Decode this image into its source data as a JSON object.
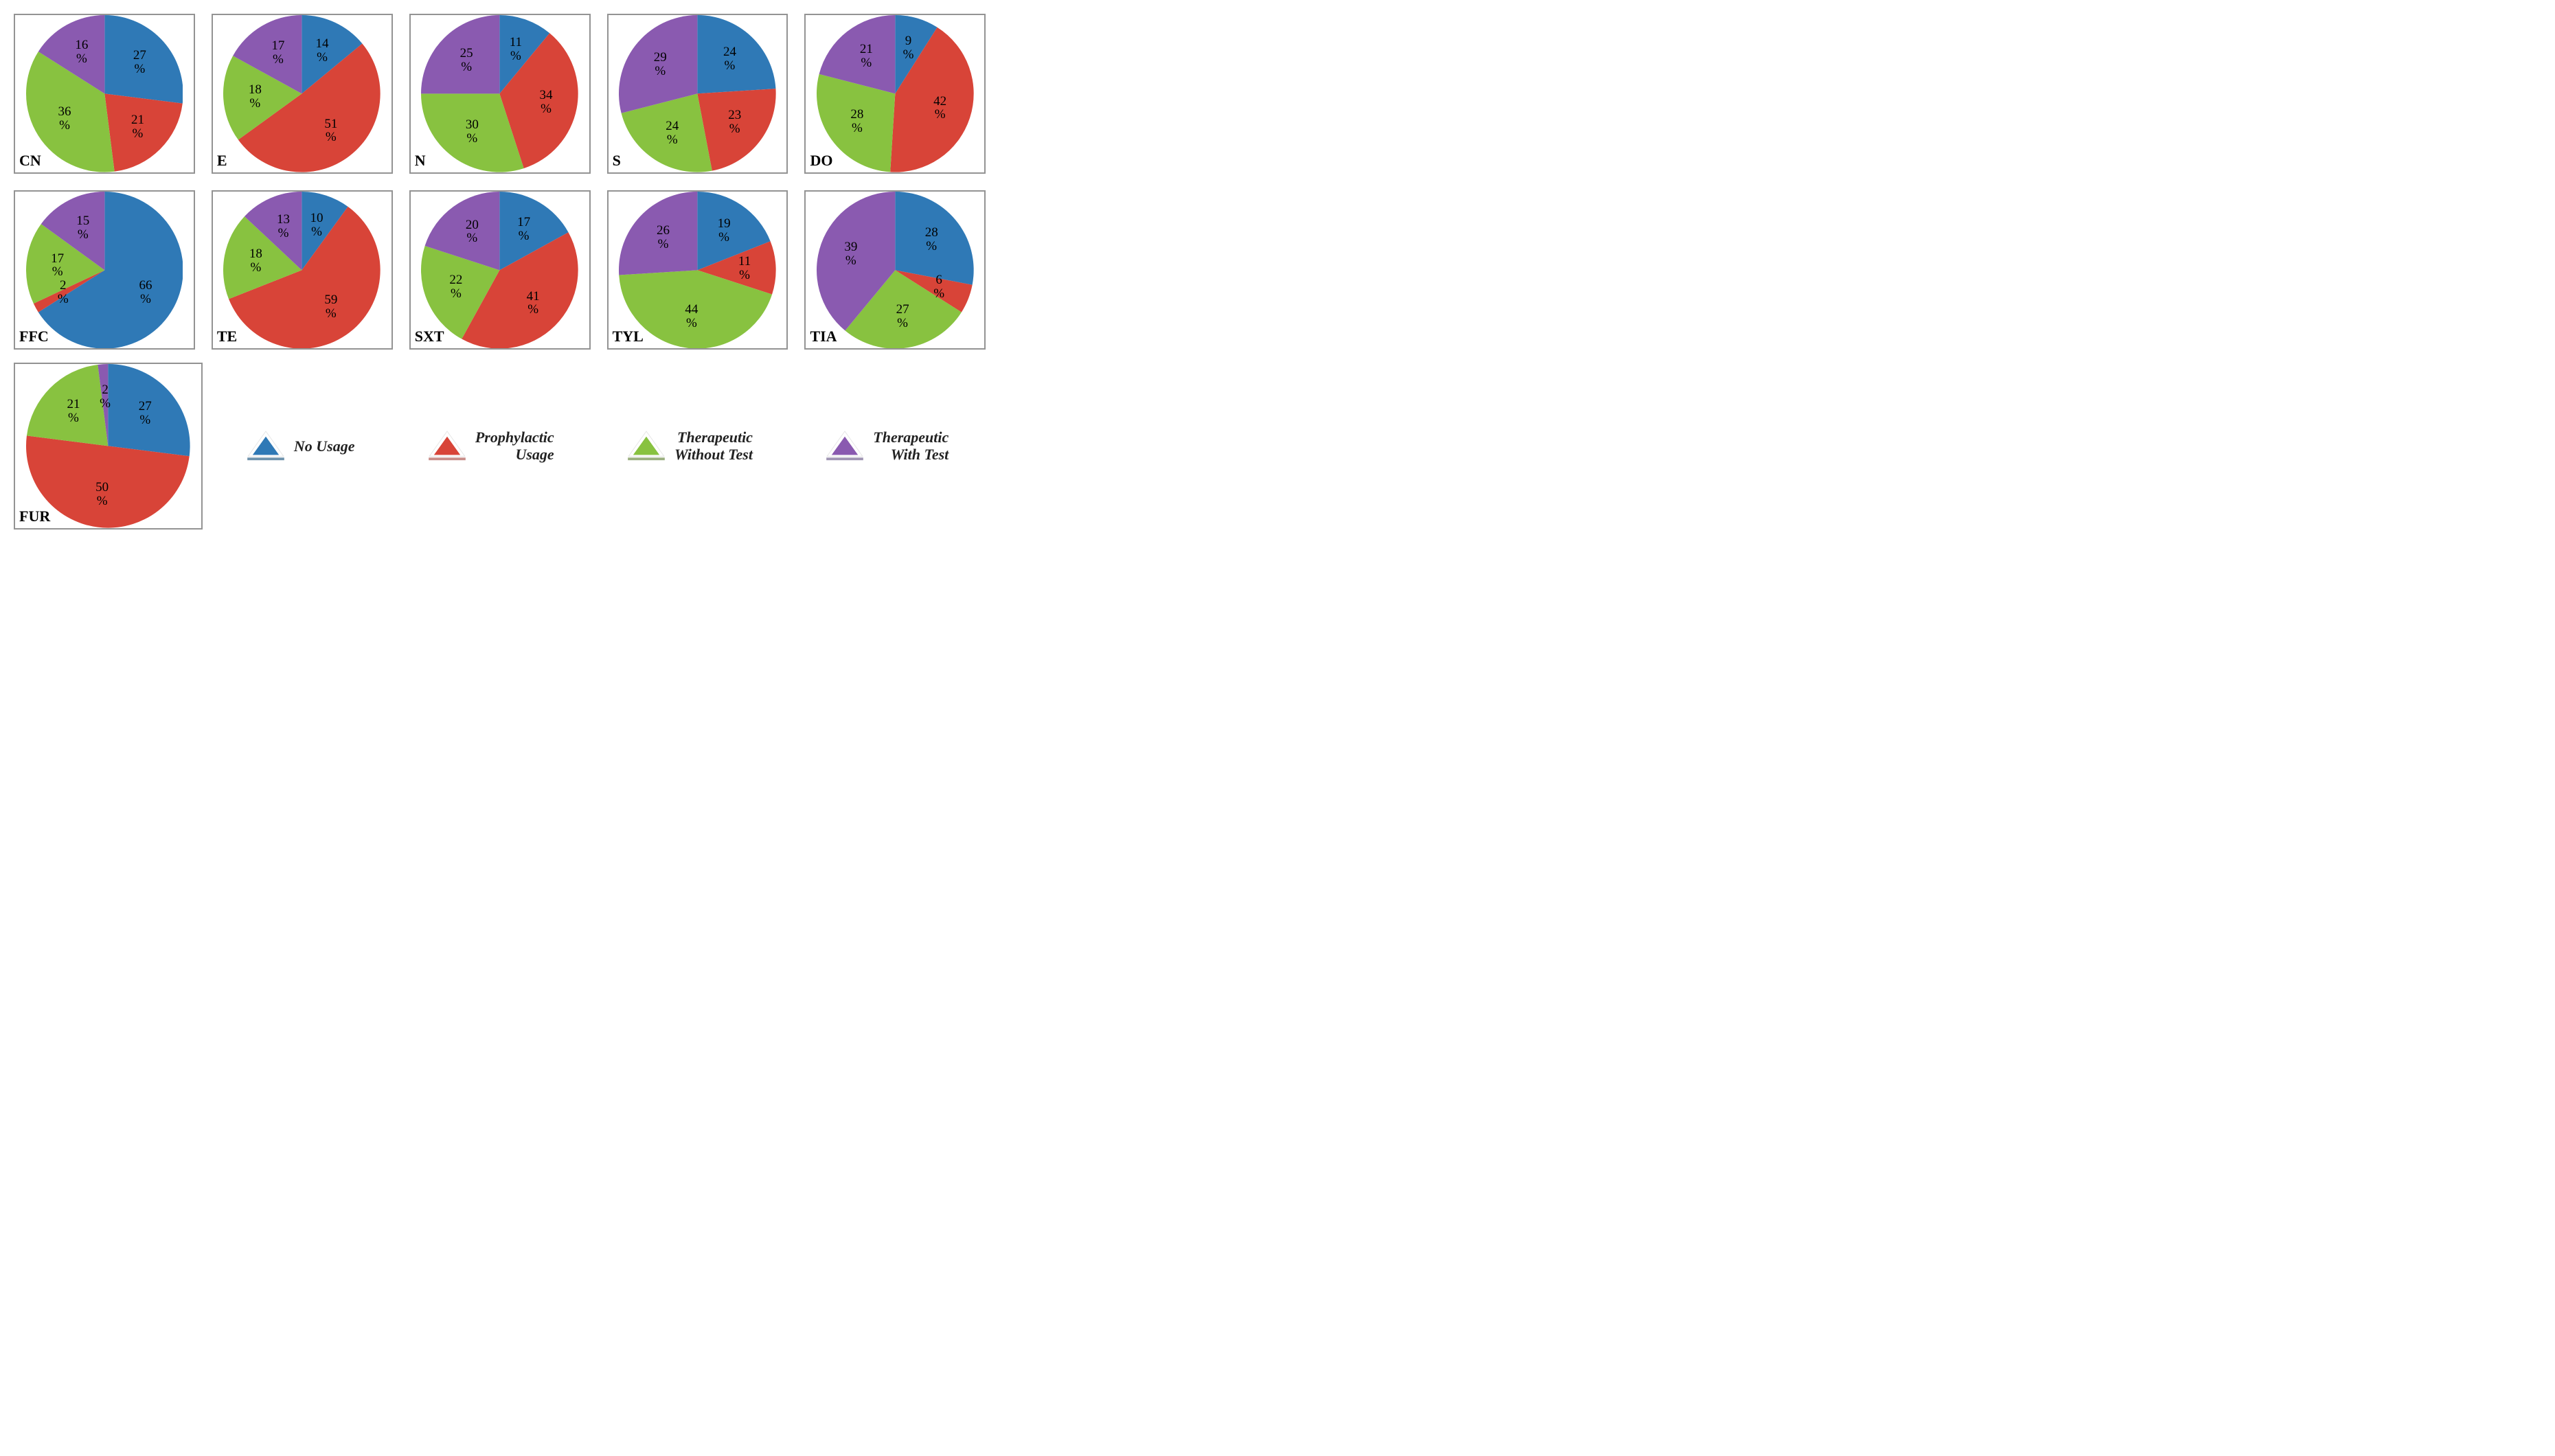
{
  "colors": {
    "blue": "#2f79b6",
    "red": "#d84438",
    "green": "#88c240",
    "purple": "#8a5ab0",
    "border": "#939393",
    "legend_stroke": {
      "blue": "#6f93ad",
      "red": "#c88e8a",
      "green": "#9cb081",
      "purple": "#a196b4"
    }
  },
  "categories": [
    "No Usage",
    "Prophylactic Usage",
    "Therapeutic Without Test",
    "Therapeutic With Test"
  ],
  "legend": [
    {
      "label": "No Usage",
      "color_key": "blue"
    },
    {
      "label": "Prophylactic\nUsage",
      "color_key": "red"
    },
    {
      "label": "Therapeutic\nWithout Test",
      "color_key": "green"
    },
    {
      "label": "Therapeutic\nWith Test",
      "color_key": "purple"
    }
  ],
  "label_fontsize": 19,
  "panel_label_fontsize": 22,
  "legend_fontsize": 22,
  "start_angle_deg": -90,
  "direction": "clockwise",
  "pie_radius_pct": 50,
  "label_radius_pct": 30,
  "charts": [
    {
      "code": "CN",
      "values": [
        27,
        21,
        36,
        16
      ]
    },
    {
      "code": "E",
      "values": [
        14,
        51,
        18,
        17
      ]
    },
    {
      "code": "N",
      "values": [
        11,
        34,
        30,
        25
      ]
    },
    {
      "code": "S",
      "values": [
        24,
        23,
        24,
        29
      ]
    },
    {
      "code": "DO",
      "values": [
        9,
        42,
        28,
        21
      ]
    },
    {
      "code": "FFC",
      "values": [
        66,
        2,
        17,
        15
      ]
    },
    {
      "code": "TE",
      "values": [
        10,
        59,
        18,
        13
      ]
    },
    {
      "code": "SXT",
      "values": [
        17,
        41,
        22,
        20
      ]
    },
    {
      "code": "TYL",
      "values": [
        19,
        11,
        44,
        26
      ]
    },
    {
      "code": "TIA",
      "values": [
        28,
        6,
        27,
        39
      ]
    },
    {
      "code": "FUR",
      "values": [
        27,
        50,
        21,
        2
      ]
    }
  ]
}
